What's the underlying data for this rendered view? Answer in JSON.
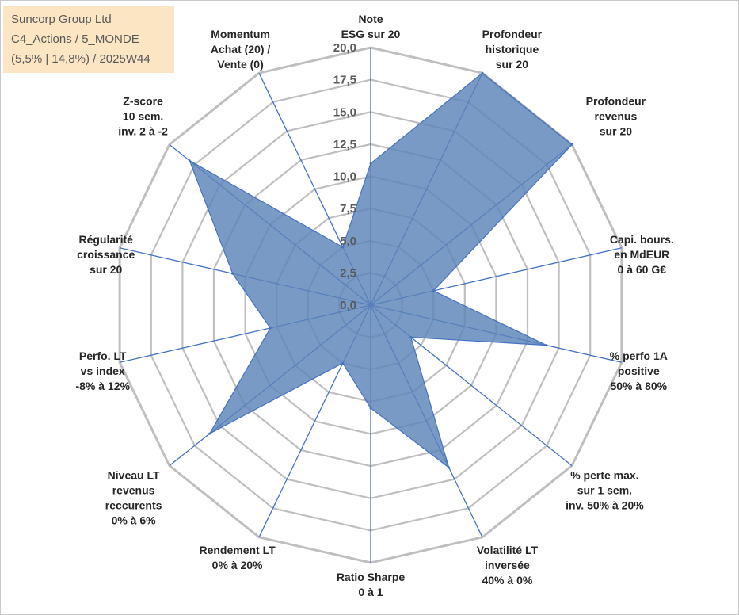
{
  "info": {
    "line1": "Suncorp Group Ltd",
    "line2": "C4_Actions / 5_MONDE",
    "line3": "(5,5% | 14,8%) / 2025W44"
  },
  "colors": {
    "grid": "#bfbfbf",
    "spoke": "#4472c4",
    "fill": "#5b84b8",
    "fill_stroke": "#4472c4",
    "info_bg": "#fbe5c3"
  },
  "chart_data": {
    "type": "radar",
    "title": "",
    "rmin": 0,
    "rmax": 20,
    "tick_step": 2.5,
    "ticks": [
      "0,0",
      "2,5",
      "5,0",
      "7,5",
      "10,0",
      "12,5",
      "15,0",
      "17,5",
      "20,0"
    ],
    "axes": [
      {
        "label": [
          "Note",
          "ESG sur 20"
        ],
        "value": 11.0
      },
      {
        "label": [
          "Profondeur",
          "historique",
          "sur 20"
        ],
        "value": 20.0
      },
      {
        "label": [
          "Profondeur",
          "revenus",
          "sur 20"
        ],
        "value": 20.0
      },
      {
        "label": [
          "Capi. bours.",
          "en MdEUR",
          "0 à 60 G€"
        ],
        "value": 5.0
      },
      {
        "label": [
          "% perfo 1A",
          "positive",
          "50% à 80%"
        ],
        "value": 14.0
      },
      {
        "label": [
          "% perte max.",
          "sur 1 sem.",
          "inv. 50% à 20%"
        ],
        "value": 4.0
      },
      {
        "label": [
          "Volatilité LT",
          "inversée",
          "40% à 0%"
        ],
        "value": 14.0
      },
      {
        "label": [
          "Ratio Sharpe",
          "0 à 1"
        ],
        "value": 8.0
      },
      {
        "label": [
          "Rendement LT",
          "0% à 20%"
        ],
        "value": 5.0
      },
      {
        "label": [
          "Niveau LT",
          "revenus",
          "reccurents",
          "0% à 6%"
        ],
        "value": 16.0
      },
      {
        "label": [
          "Perfo. LT",
          "vs index",
          "-8% à 12%"
        ],
        "value": 8.0
      },
      {
        "label": [
          "Régularité",
          "croissance",
          "sur 20"
        ],
        "value": 11.0
      },
      {
        "label": [
          "Z-score",
          "10 sem.",
          "inv. 2 à -2"
        ],
        "value": 18.0
      },
      {
        "label": [
          "Momentum",
          "Achat (20) /",
          "Vente (0)"
        ],
        "value": 5.0
      }
    ]
  }
}
